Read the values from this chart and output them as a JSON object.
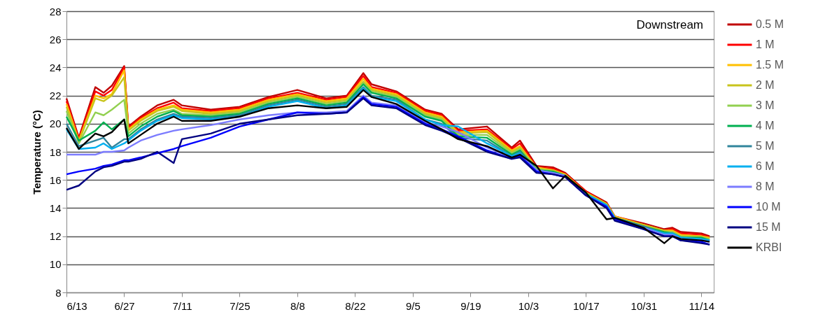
{
  "chart_data": {
    "type": "line",
    "ylabel": "Temperature (°C)",
    "annotations": [
      "Downstream"
    ],
    "x": [
      "--06-13",
      "--06-16",
      "--06-20",
      "--06-22",
      "--06-24",
      "--06-27",
      "--06-28",
      "--07-01",
      "--07-05",
      "--07-09",
      "--07-11",
      "--07-18",
      "--07-25",
      "--08-01",
      "--08-08",
      "--08-15",
      "--08-20",
      "--08-24",
      "--08-26",
      "--09-01",
      "--09-08",
      "--09-12",
      "--09-16",
      "--09-23",
      "--09-29",
      "--10-01",
      "--10-05",
      "--10-09",
      "--10-12",
      "--10-17",
      "--10-22",
      "--10-24",
      "--10-31",
      "--11-05",
      "--11-07",
      "--11-09",
      "--11-14",
      "--11-16"
    ],
    "xlim": [
      "--06-13",
      "--11-17"
    ],
    "xticks": [
      {
        "value": "--06-13",
        "label": "6/13"
      },
      {
        "value": "--06-27",
        "label": "6/27"
      },
      {
        "value": "--07-11",
        "label": "7/11"
      },
      {
        "value": "--07-25",
        "label": "7/25"
      },
      {
        "value": "--08-08",
        "label": "8/8"
      },
      {
        "value": "--08-22",
        "label": "8/22"
      },
      {
        "value": "--09-05",
        "label": "9/5"
      },
      {
        "value": "--09-19",
        "label": "9/19"
      },
      {
        "value": "--10-03",
        "label": "10/3"
      },
      {
        "value": "--10-17",
        "label": "10/17"
      },
      {
        "value": "--10-31",
        "label": "10/31"
      },
      {
        "value": "--11-14",
        "label": "11/14"
      }
    ],
    "ylim": [
      8,
      28
    ],
    "yticks": [
      8,
      10,
      12,
      14,
      16,
      18,
      20,
      22,
      24,
      26,
      28
    ],
    "grid": "y",
    "legend": "right",
    "series": [
      {
        "name": "0.5 M",
        "color": "#c00000",
        "values": [
          21.8,
          19.0,
          22.6,
          22.2,
          22.7,
          24.1,
          19.8,
          20.5,
          21.3,
          21.7,
          21.3,
          21.0,
          21.2,
          21.9,
          22.4,
          21.8,
          22.0,
          23.6,
          22.8,
          22.3,
          21.0,
          20.7,
          19.6,
          19.8,
          18.3,
          18.8,
          17.0,
          16.9,
          16.5,
          15.2,
          14.4,
          13.4,
          12.9,
          12.5,
          12.6,
          12.3,
          12.2,
          12.0
        ]
      },
      {
        "name": "1 M",
        "color": "#ff0000",
        "values": [
          21.6,
          18.9,
          22.3,
          22.0,
          22.4,
          24.0,
          19.7,
          20.4,
          21.1,
          21.5,
          21.1,
          20.9,
          21.1,
          21.8,
          22.2,
          21.7,
          21.9,
          23.4,
          22.6,
          22.2,
          20.9,
          20.6,
          19.5,
          19.6,
          18.2,
          18.6,
          16.9,
          16.8,
          16.4,
          15.2,
          14.3,
          13.4,
          12.8,
          12.4,
          12.5,
          12.2,
          12.1,
          11.9
        ]
      },
      {
        "name": "1.5 M",
        "color": "#ffc000",
        "values": [
          21.4,
          18.8,
          22.0,
          21.8,
          22.1,
          23.8,
          19.6,
          20.3,
          21.0,
          21.3,
          21.0,
          20.8,
          21.0,
          21.7,
          22.1,
          21.6,
          21.8,
          23.2,
          22.5,
          22.1,
          20.8,
          20.5,
          19.4,
          19.5,
          18.1,
          18.4,
          16.9,
          16.7,
          16.4,
          15.1,
          14.3,
          13.4,
          12.8,
          12.4,
          12.4,
          12.1,
          12.0,
          11.9
        ]
      },
      {
        "name": "2 M",
        "color": "#c8c41c",
        "values": [
          21.2,
          18.7,
          21.8,
          21.6,
          22.0,
          23.3,
          19.5,
          20.2,
          20.9,
          21.2,
          20.9,
          20.7,
          20.9,
          21.6,
          22.0,
          21.5,
          21.7,
          23.0,
          22.4,
          22.0,
          20.7,
          20.4,
          19.3,
          19.4,
          18.0,
          18.3,
          16.8,
          16.7,
          16.3,
          15.1,
          14.3,
          13.3,
          12.8,
          12.4,
          12.3,
          12.0,
          12.0,
          11.8
        ]
      },
      {
        "name": "3 M",
        "color": "#92d050",
        "values": [
          20.9,
          18.6,
          20.8,
          20.6,
          21.0,
          21.7,
          19.3,
          20.0,
          20.7,
          21.0,
          20.7,
          20.6,
          20.8,
          21.5,
          21.9,
          21.4,
          21.6,
          22.9,
          22.3,
          21.9,
          20.6,
          20.3,
          19.2,
          19.2,
          17.9,
          18.2,
          16.8,
          16.6,
          16.3,
          15.0,
          14.2,
          13.3,
          12.7,
          12.3,
          12.3,
          12.0,
          11.9,
          11.8
        ]
      },
      {
        "name": "4 M",
        "color": "#00b050",
        "values": [
          20.5,
          18.8,
          19.5,
          20.1,
          19.6,
          20.3,
          19.1,
          19.8,
          20.5,
          20.9,
          20.6,
          20.5,
          20.7,
          21.4,
          21.8,
          21.3,
          21.5,
          22.8,
          22.2,
          21.8,
          20.5,
          20.2,
          19.1,
          19.0,
          17.8,
          18.1,
          16.7,
          16.6,
          16.3,
          15.0,
          14.2,
          13.3,
          12.7,
          12.3,
          12.2,
          11.9,
          11.9,
          11.7
        ]
      },
      {
        "name": "5 M",
        "color": "#31859c",
        "values": [
          20.0,
          18.4,
          18.8,
          19.0,
          18.3,
          18.9,
          18.9,
          19.6,
          20.3,
          20.7,
          20.5,
          20.4,
          20.6,
          21.3,
          21.7,
          21.2,
          21.4,
          22.6,
          22.0,
          21.7,
          20.3,
          20.0,
          19.0,
          18.8,
          17.7,
          18.0,
          16.7,
          16.5,
          16.3,
          15.0,
          14.2,
          13.3,
          12.7,
          12.2,
          12.2,
          11.9,
          11.8,
          11.7
        ]
      },
      {
        "name": "6 M",
        "color": "#00b0f0",
        "values": [
          19.6,
          18.2,
          18.3,
          18.6,
          18.2,
          18.6,
          18.8,
          19.5,
          20.2,
          20.6,
          20.4,
          20.3,
          20.5,
          21.2,
          21.6,
          21.1,
          21.3,
          22.5,
          21.9,
          21.6,
          20.3,
          19.9,
          19.8,
          18.6,
          17.7,
          17.9,
          16.7,
          16.5,
          16.3,
          15.0,
          14.2,
          13.3,
          12.6,
          12.2,
          12.2,
          11.9,
          11.8,
          11.7
        ]
      },
      {
        "name": "8 M",
        "color": "#7c7cff",
        "values": [
          17.8,
          17.8,
          17.8,
          18.0,
          18.0,
          18.1,
          18.3,
          18.8,
          19.2,
          19.5,
          19.6,
          19.9,
          20.3,
          20.6,
          20.8,
          20.8,
          20.9,
          22.0,
          21.5,
          21.3,
          20.1,
          19.8,
          19.4,
          18.3,
          17.6,
          17.8,
          16.7,
          16.5,
          16.3,
          14.9,
          14.1,
          13.2,
          12.6,
          12.1,
          12.1,
          11.8,
          11.7,
          11.6
        ]
      },
      {
        "name": "10 M",
        "color": "#0000ff",
        "values": [
          16.4,
          16.6,
          16.8,
          17.0,
          17.1,
          17.4,
          17.4,
          17.6,
          17.9,
          18.2,
          18.4,
          19.0,
          19.8,
          20.3,
          20.8,
          20.7,
          20.8,
          21.9,
          21.4,
          21.2,
          20.0,
          19.6,
          19.1,
          18.1,
          17.5,
          17.7,
          16.6,
          16.4,
          16.2,
          14.9,
          14.1,
          13.2,
          12.5,
          12.0,
          12.0,
          11.7,
          11.6,
          11.4
        ]
      },
      {
        "name": "15 M",
        "color": "#000080",
        "values": [
          15.3,
          15.6,
          16.6,
          16.9,
          17.0,
          17.3,
          17.3,
          17.5,
          18.0,
          17.2,
          18.9,
          19.3,
          20.0,
          20.3,
          20.6,
          20.7,
          20.8,
          21.8,
          21.3,
          21.1,
          19.9,
          19.5,
          19.0,
          18.0,
          17.5,
          17.6,
          16.5,
          16.4,
          16.2,
          14.9,
          14.0,
          13.1,
          12.5,
          12.0,
          12.0,
          11.7,
          11.5,
          11.4
        ]
      },
      {
        "name": "KRBI",
        "color": "#000000",
        "values": [
          19.7,
          18.2,
          19.3,
          19.1,
          19.4,
          20.3,
          18.6,
          19.2,
          20.0,
          20.5,
          20.2,
          20.2,
          20.5,
          21.1,
          21.3,
          21.1,
          21.2,
          22.4,
          21.9,
          21.4,
          20.2,
          19.6,
          18.9,
          18.4,
          17.6,
          17.8,
          17.0,
          15.4,
          16.3,
          15.1,
          13.2,
          13.3,
          12.6,
          11.5,
          12.0,
          11.8,
          11.7,
          11.6
        ]
      }
    ]
  }
}
